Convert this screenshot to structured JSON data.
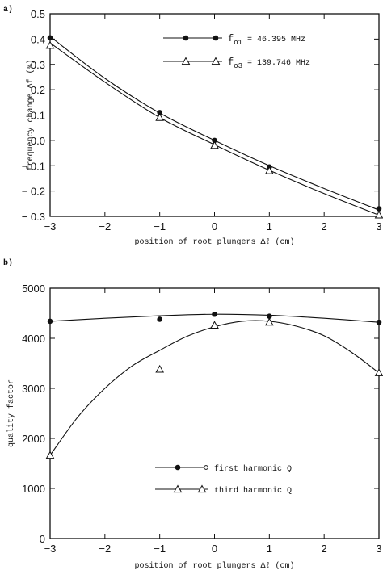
{
  "chart_data": [
    {
      "type": "line",
      "panel_label": "a)",
      "xlabel": "position of root plungers Δℓ (cm)",
      "ylabel": "frequency change Δf (%)",
      "xlim": [
        -3,
        3
      ],
      "ylim": [
        -0.3,
        0.5
      ],
      "xticks": [
        -3,
        -2,
        -1,
        0,
        1,
        2,
        3
      ],
      "xtick_labels": [
        "−3",
        "−2",
        "−1",
        "0",
        "1",
        "2",
        "3"
      ],
      "yticks": [
        0.5,
        0.4,
        0.3,
        0.2,
        0.1,
        0.0,
        -0.1,
        -0.2,
        -0.3
      ],
      "ytick_labels": [
        "0.5",
        "0.4",
        "0.3",
        "0.2",
        "0.1",
        "0.0",
        "− 0.1",
        "− 0.2",
        "− 0.3"
      ],
      "grid": false,
      "legend_position": "top-right",
      "series": [
        {
          "name": "fo1 = 46.395 MHz",
          "legend_main": "f",
          "legend_sub": "o1",
          "legend_rest": " = 46.395 MHz",
          "marker": "filled-circle",
          "points": [
            [
              -3,
              0.405
            ],
            [
              -1,
              0.11
            ],
            [
              0,
              0.0
            ],
            [
              1,
              -0.105
            ],
            [
              3,
              -0.27
            ]
          ],
          "curve": [
            [
              -3,
              0.41
            ],
            [
              -2,
              0.245
            ],
            [
              -1,
              0.108
            ],
            [
              0,
              0.0
            ],
            [
              1,
              -0.1
            ],
            [
              2,
              -0.19
            ],
            [
              3,
              -0.275
            ]
          ]
        },
        {
          "name": "fo3 = 139.746 MHz",
          "legend_main": "f",
          "legend_sub": "o3",
          "legend_rest": " = 139.746 MHz",
          "marker": "open-triangle",
          "points": [
            [
              -3,
              0.375
            ],
            [
              -1,
              0.09
            ],
            [
              0,
              -0.02
            ],
            [
              1,
              -0.12
            ],
            [
              3,
              -0.295
            ]
          ],
          "curve": [
            [
              -3,
              0.385
            ],
            [
              -2,
              0.23
            ],
            [
              -1,
              0.09
            ],
            [
              0,
              -0.017
            ],
            [
              1,
              -0.118
            ],
            [
              2,
              -0.21
            ],
            [
              3,
              -0.295
            ]
          ]
        }
      ]
    },
    {
      "type": "line",
      "panel_label": "b)",
      "xlabel": "position of root plungers Δℓ (cm)",
      "ylabel": "quality factor",
      "xlim": [
        -3,
        3
      ],
      "ylim": [
        0,
        5000
      ],
      "xticks": [
        -3,
        -2,
        -1,
        0,
        1,
        2,
        3
      ],
      "xtick_labels": [
        "−3",
        "−2",
        "−1",
        "0",
        "1",
        "2",
        "3"
      ],
      "yticks": [
        5000,
        4000,
        3000,
        2000,
        1000,
        0
      ],
      "ytick_labels": [
        "5000",
        "4000",
        "3000",
        "2000",
        "1000",
        "0"
      ],
      "grid": false,
      "legend_position": "bottom-center",
      "series": [
        {
          "name": "first harmonic Q",
          "marker": "filled-circle",
          "points": [
            [
              -3,
              4340
            ],
            [
              -1,
              4380
            ],
            [
              0,
              4480
            ],
            [
              1,
              4440
            ],
            [
              3,
              4320
            ]
          ],
          "curve": [
            [
              -3,
              4340
            ],
            [
              -2,
              4400
            ],
            [
              -1,
              4450
            ],
            [
              0,
              4480
            ],
            [
              1,
              4460
            ],
            [
              2,
              4400
            ],
            [
              3,
              4320
            ]
          ]
        },
        {
          "name": "third harmonic Q",
          "marker": "open-triangle",
          "points": [
            [
              -3,
              1660
            ],
            [
              -1,
              3380
            ],
            [
              0,
              4260
            ],
            [
              1,
              4320
            ],
            [
              3,
              3310
            ]
          ],
          "curve": [
            [
              -3,
              1660
            ],
            [
              -2.5,
              2420
            ],
            [
              -2,
              3000
            ],
            [
              -1.5,
              3450
            ],
            [
              -1,
              3760
            ],
            [
              -0.5,
              4040
            ],
            [
              0,
              4230
            ],
            [
              0.5,
              4340
            ],
            [
              1,
              4340
            ],
            [
              1.5,
              4240
            ],
            [
              2,
              4050
            ],
            [
              2.5,
              3720
            ],
            [
              3,
              3310
            ]
          ]
        }
      ]
    }
  ]
}
